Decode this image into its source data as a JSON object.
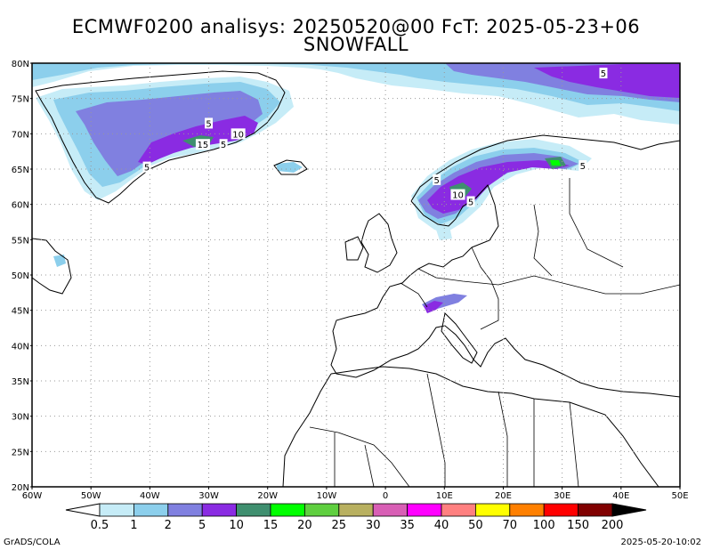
{
  "title": {
    "line1": "ECMWF0200 analisys: 20250520@00 FcT: 2025-05-23+06",
    "line2": "SNOWFALL"
  },
  "map": {
    "lon_range": [
      -60,
      50
    ],
    "lat_range": [
      20,
      80
    ],
    "lon_labels": [
      "60W",
      "50W",
      "40W",
      "30W",
      "20W",
      "10W",
      "0",
      "10E",
      "20E",
      "30E",
      "40E",
      "50E"
    ],
    "lat_labels": [
      "80N",
      "75N",
      "70N",
      "65N",
      "60N",
      "55N",
      "50N",
      "45N",
      "40N",
      "35N",
      "30N",
      "25N",
      "20N"
    ],
    "contour_labels": [
      {
        "text": "5",
        "lon": 37,
        "lat": 78.6
      },
      {
        "text": "5",
        "lon": -30,
        "lat": 71.5
      },
      {
        "text": "10",
        "lon": -25,
        "lat": 70
      },
      {
        "text": "15",
        "lon": -31,
        "lat": 68.5
      },
      {
        "text": "5",
        "lon": -27.5,
        "lat": 68.5
      },
      {
        "text": "5",
        "lon": -40.5,
        "lat": 65.3
      },
      {
        "text": "5",
        "lon": 8.7,
        "lat": 63.5
      },
      {
        "text": "10",
        "lon": 12.3,
        "lat": 61.4
      },
      {
        "text": "5",
        "lon": 14.5,
        "lat": 60.4
      },
      {
        "text": "5",
        "lon": 33.5,
        "lat": 65.5
      }
    ]
  },
  "colorbar": {
    "labels": [
      "0.5",
      "1",
      "2",
      "5",
      "10",
      "15",
      "20",
      "25",
      "30",
      "35",
      "40",
      "50",
      "70",
      "100",
      "150",
      "200"
    ],
    "colors": [
      "#c6ecf7",
      "#8ccfec",
      "#8080e0",
      "#8a2be2",
      "#3f8f6f",
      "#00ff00",
      "#5fcf3f",
      "#b8b060",
      "#d85fb5",
      "#ff00ff",
      "#ff8080",
      "#ffff00",
      "#ff8000",
      "#ff0000",
      "#800000",
      "#000000"
    ]
  },
  "footer": {
    "left": "GrADS/COLA",
    "right": "2025-05-20-10:02"
  }
}
